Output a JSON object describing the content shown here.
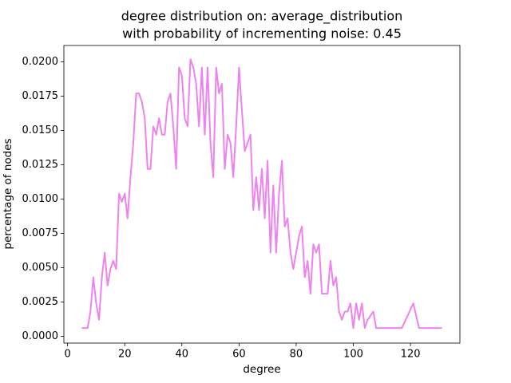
{
  "chart_data": {
    "type": "line",
    "title": [
      "degree distribution on: average_distribution",
      " with probability of incrementing noise: 0.45"
    ],
    "xlabel": "degree",
    "ylabel": "percentage of nodes",
    "color": "#ee82ee",
    "x": [
      5,
      7,
      8,
      9,
      10,
      11,
      12,
      13,
      14,
      15,
      16,
      17,
      18,
      19,
      20,
      21,
      22,
      23,
      24,
      25,
      26,
      27,
      28,
      29,
      30,
      31,
      32,
      33,
      34,
      35,
      36,
      37,
      38,
      39,
      40,
      41,
      42,
      43,
      44,
      45,
      46,
      47,
      48,
      49,
      50,
      51,
      52,
      53,
      54,
      55,
      56,
      57,
      58,
      59,
      60,
      61,
      62,
      63,
      64,
      65,
      66,
      67,
      68,
      69,
      70,
      71,
      72,
      73,
      74,
      75,
      76,
      77,
      78,
      79,
      80,
      81,
      82,
      83,
      84,
      85,
      86,
      87,
      88,
      89,
      90,
      91,
      92,
      93,
      94,
      95,
      96,
      97,
      98,
      99,
      100,
      101,
      102,
      103,
      104,
      105,
      107,
      108,
      110,
      117,
      121,
      123,
      125,
      131
    ],
    "values": [
      0.0006,
      0.0006,
      0.0018,
      0.0043,
      0.0024,
      0.0012,
      0.0043,
      0.0061,
      0.0037,
      0.0049,
      0.0055,
      0.0049,
      0.0104,
      0.0098,
      0.0104,
      0.0086,
      0.0116,
      0.0141,
      0.0177,
      0.0177,
      0.0171,
      0.0159,
      0.0122,
      0.0122,
      0.0153,
      0.0147,
      0.0159,
      0.0147,
      0.0147,
      0.0171,
      0.0177,
      0.0153,
      0.0122,
      0.0196,
      0.019,
      0.0159,
      0.0153,
      0.0202,
      0.0196,
      0.0184,
      0.0153,
      0.0196,
      0.0147,
      0.0196,
      0.0141,
      0.0116,
      0.0196,
      0.0177,
      0.0184,
      0.0122,
      0.0147,
      0.0141,
      0.0116,
      0.0153,
      0.0196,
      0.0165,
      0.0135,
      0.0141,
      0.0147,
      0.0092,
      0.0116,
      0.0092,
      0.0122,
      0.0086,
      0.0128,
      0.0061,
      0.011,
      0.0061,
      0.0104,
      0.0128,
      0.008,
      0.0086,
      0.0061,
      0.0049,
      0.0061,
      0.0073,
      0.008,
      0.0043,
      0.0055,
      0.0031,
      0.0067,
      0.0061,
      0.0067,
      0.0031,
      0.0031,
      0.0031,
      0.0055,
      0.0037,
      0.0043,
      0.0018,
      0.0012,
      0.0018,
      0.0018,
      0.0024,
      0.0006,
      0.0024,
      0.0012,
      0.0024,
      0.0006,
      0.0012,
      0.0018,
      0.0006,
      0.0006,
      0.0006,
      0.0024,
      0.0006,
      0.0006,
      0.0006
    ],
    "xlim": [
      -1.3,
      137.3
    ],
    "xticks": [
      0,
      20,
      40,
      60,
      80,
      100,
      120
    ],
    "ylim": [
      -0.0005,
      0.0212
    ],
    "yticks": [
      {
        "value": 0,
        "label": "0.0000"
      },
      {
        "value": 0.0025,
        "label": "0.0025"
      },
      {
        "value": 0.005,
        "label": "0.0050"
      },
      {
        "value": 0.0075,
        "label": "0.0075"
      },
      {
        "value": 0.01,
        "label": "0.0100"
      },
      {
        "value": 0.0125,
        "label": "0.0125"
      },
      {
        "value": 0.015,
        "label": "0.0150"
      },
      {
        "value": 0.0175,
        "label": "0.0175"
      },
      {
        "value": 0.02,
        "label": "0.0200"
      }
    ]
  }
}
